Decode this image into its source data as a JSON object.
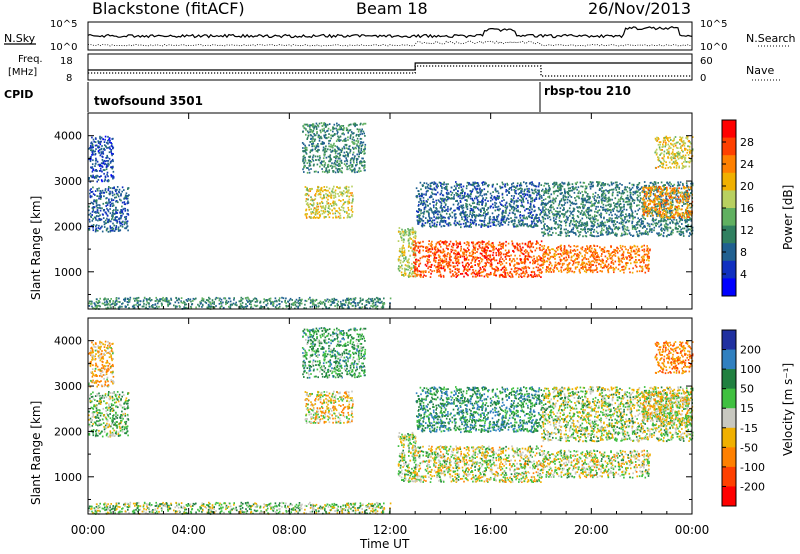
{
  "header": {
    "title": "Blackstone (fitACF)",
    "beam": "Beam 18",
    "date": "26/Nov/2013"
  },
  "noise_panel": {
    "left_label": "N.Sky",
    "right_label": "N.Search",
    "left_ticks": [
      "10^5",
      "10^0"
    ],
    "right_ticks": [
      "10^5",
      "10^0"
    ]
  },
  "freq_panel": {
    "left_label_1": "Freq.",
    "left_label_2": "[MHz]",
    "left_ticks": [
      "18",
      "8"
    ],
    "right_label": "Nave",
    "right_ticks": [
      "60",
      "0"
    ]
  },
  "cpid": {
    "label": "CPID",
    "programs": [
      {
        "name": "twofsound 3501",
        "start": "00:00"
      },
      {
        "name": "rbsp-tou 210",
        "start": "18:00"
      }
    ]
  },
  "power_panel": {
    "ylabel": "Slant Range [km]",
    "yticks": [
      "4000",
      "3000",
      "2000",
      "1000"
    ],
    "cbar_label": "Power [dB]",
    "cbar_ticks": [
      "28",
      "24",
      "20",
      "16",
      "12",
      "8",
      "4"
    ],
    "cbar_colors": [
      "#ff0000",
      "#ff4000",
      "#ff8000",
      "#f0b000",
      "#b8d060",
      "#60b060",
      "#308060",
      "#206090",
      "#1030c0",
      "#0000ff"
    ]
  },
  "velocity_panel": {
    "ylabel": "Slant Range [km]",
    "yticks": [
      "4000",
      "3000",
      "2000",
      "1000"
    ],
    "cbar_label": "Velocity [m s⁻¹]",
    "cbar_ticks": [
      "200",
      "100",
      "50",
      "15",
      "-15",
      "-50",
      "-100",
      "-200"
    ],
    "cbar_colors": [
      "#2030a0",
      "#3080c0",
      "#208040",
      "#40c040",
      "#c8c8c0",
      "#f0b000",
      "#ff8000",
      "#ff4000",
      "#ff0000"
    ]
  },
  "xaxis": {
    "label": "Time UT",
    "ticks": [
      "00:00",
      "04:00",
      "08:00",
      "12:00",
      "16:00",
      "20:00",
      "00:00"
    ]
  },
  "chart_data": {
    "type": "heatmap",
    "title": "Blackstone (fitACF)",
    "xlabel": "Time UT",
    "ylabel": "Slant Range [km]",
    "x_range_hours": [
      0,
      24
    ],
    "y_range_km": [
      180,
      4500
    ],
    "echo_regions": [
      {
        "t0": 0.0,
        "t1": 1.6,
        "r0": 1900,
        "r1": 2900,
        "power_db": 6,
        "velocity": 30
      },
      {
        "t0": 0.0,
        "t1": 1.0,
        "r0": 3000,
        "r1": 4000,
        "power_db": 5,
        "velocity": -40
      },
      {
        "t0": 0.0,
        "t1": 12.0,
        "r0": 200,
        "r1": 450,
        "power_db": 10,
        "velocity": 20
      },
      {
        "t0": 8.5,
        "t1": 11.0,
        "r0": 3200,
        "r1": 4300,
        "power_db": 10,
        "velocity": 60
      },
      {
        "t0": 8.6,
        "t1": 10.5,
        "r0": 2200,
        "r1": 2900,
        "power_db": 18,
        "velocity": -20
      },
      {
        "t0": 12.3,
        "t1": 13.0,
        "r0": 900,
        "r1": 2000,
        "power_db": 16,
        "velocity": 10
      },
      {
        "t0": 12.9,
        "t1": 18.0,
        "r0": 900,
        "r1": 1700,
        "power_db": 26,
        "velocity": 0
      },
      {
        "t0": 13.0,
        "t1": 18.0,
        "r0": 2000,
        "r1": 3000,
        "power_db": 7,
        "velocity": 80
      },
      {
        "t0": 18.0,
        "t1": 22.3,
        "r0": 1000,
        "r1": 1600,
        "power_db": 24,
        "velocity": 0
      },
      {
        "t0": 18.0,
        "t1": 24.0,
        "r0": 1800,
        "r1": 3000,
        "power_db": 9,
        "velocity": 10
      },
      {
        "t0": 22.0,
        "t1": 24.0,
        "r0": 2200,
        "r1": 2900,
        "power_db": 22,
        "velocity": -10
      },
      {
        "t0": 22.5,
        "t1": 24.0,
        "r0": 3300,
        "r1": 4000,
        "power_db": 18,
        "velocity": -80
      }
    ]
  }
}
